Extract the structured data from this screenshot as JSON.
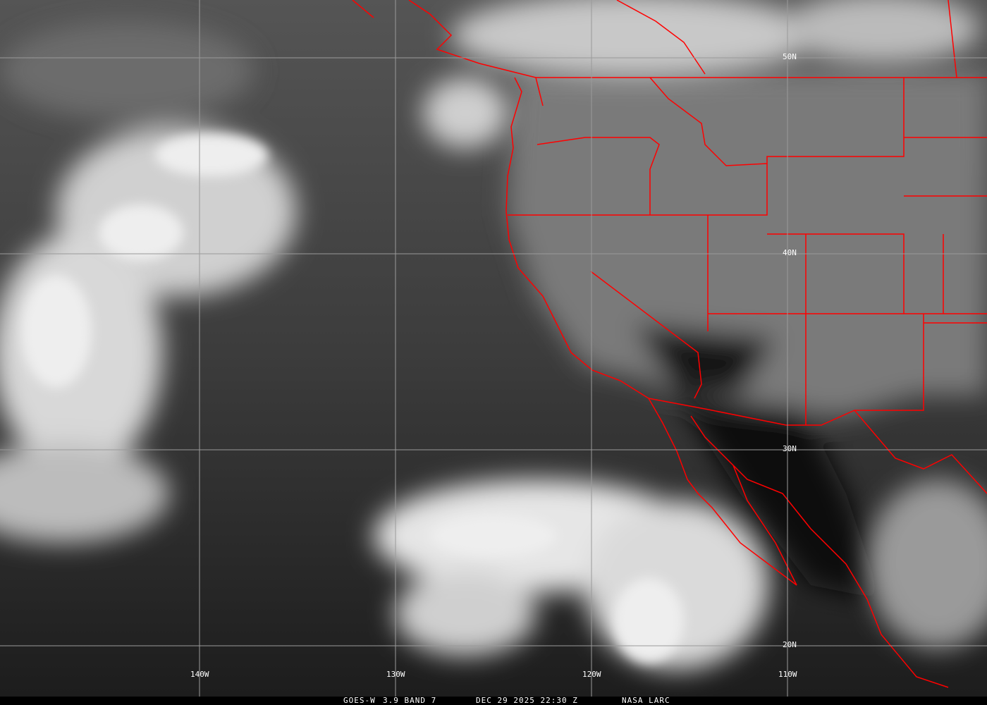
{
  "image": {
    "satellite": "GOES-W",
    "product": "3.9 BAND 7",
    "datetime": "DEC 29 2025 22:30 Z",
    "source": "NASA LARC",
    "colors": {
      "borders": "#ff0000",
      "grid": "#9a9a9a",
      "text": "#ffffff"
    }
  },
  "grid": {
    "latitudes": [
      "50N",
      "40N",
      "30N",
      "20N"
    ],
    "longitudes": [
      "140W",
      "130W",
      "120W",
      "110W"
    ]
  }
}
